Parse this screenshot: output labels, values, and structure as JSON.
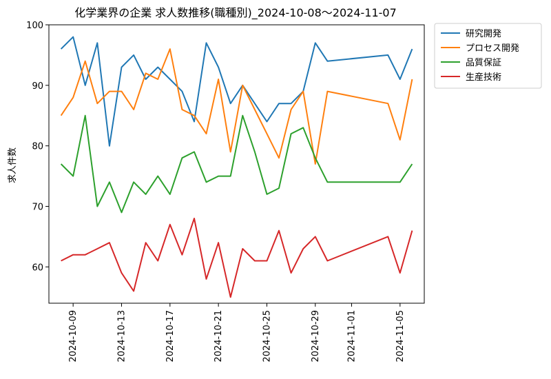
{
  "chart_data": {
    "type": "line",
    "title": "化学業界の企業 求人数推移(職種別)_2024-10-08～2024-11-07",
    "xlabel": "",
    "ylabel": "求人件数",
    "xlim": [
      "2024-10-07",
      "2024-11-07"
    ],
    "ylim": [
      54,
      100
    ],
    "x_ticks": [
      "2024-10-09",
      "2024-10-13",
      "2024-10-17",
      "2024-10-21",
      "2024-10-25",
      "2024-10-29",
      "2024-11-01",
      "2024-11-05"
    ],
    "y_ticks": [
      60,
      70,
      80,
      90,
      100
    ],
    "grid": false,
    "legend_position": "outside-top-right",
    "x": [
      "2024-10-08",
      "2024-10-09",
      "2024-10-10",
      "2024-10-11",
      "2024-10-12",
      "2024-10-13",
      "2024-10-14",
      "2024-10-15",
      "2024-10-16",
      "2024-10-17",
      "2024-10-18",
      "2024-10-19",
      "2024-10-20",
      "2024-10-21",
      "2024-10-22",
      "2024-10-23",
      "2024-10-24",
      "2024-10-25",
      "2024-10-26",
      "2024-10-27",
      "2024-10-28",
      "2024-10-29",
      "2024-10-30",
      "2024-11-04",
      "2024-11-05",
      "2024-11-06"
    ],
    "series": [
      {
        "name": "研究開発",
        "color": "#1f77b4",
        "values": [
          96,
          98,
          90,
          97,
          80,
          93,
          95,
          91,
          93,
          91,
          89,
          84,
          97,
          93,
          87,
          90,
          87,
          84,
          87,
          87,
          89,
          97,
          94,
          95,
          91,
          96
        ]
      },
      {
        "name": "プロセス開発",
        "color": "#ff7f0e",
        "values": [
          85,
          88,
          94,
          87,
          89,
          89,
          86,
          92,
          91,
          96,
          86,
          85,
          82,
          91,
          79,
          90,
          86,
          82,
          78,
          86,
          89,
          77,
          89,
          87,
          81,
          91
        ]
      },
      {
        "name": "品質保証",
        "color": "#2ca02c",
        "values": [
          77,
          75,
          85,
          70,
          74,
          69,
          74,
          72,
          75,
          72,
          78,
          79,
          74,
          75,
          75,
          85,
          79,
          72,
          73,
          82,
          83,
          78,
          74,
          74,
          74,
          77
        ]
      },
      {
        "name": "生産技術",
        "color": "#d62728",
        "values": [
          61,
          62,
          62,
          63,
          64,
          59,
          56,
          64,
          61,
          67,
          62,
          68,
          58,
          64,
          55,
          63,
          61,
          61,
          66,
          59,
          63,
          65,
          61,
          65,
          59,
          66
        ]
      }
    ]
  }
}
